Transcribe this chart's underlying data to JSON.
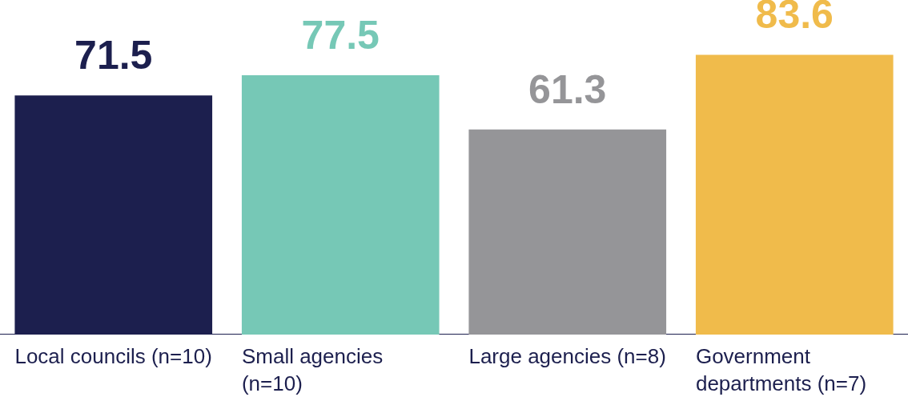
{
  "chart_data": {
    "type": "bar",
    "categories": [
      "Local councils (n=10)",
      "Small agencies (n=10)",
      "Large agencies (n=8)",
      "Government departments (n=7)"
    ],
    "values": [
      71.5,
      77.5,
      61.3,
      83.6
    ],
    "colors": [
      "#1c1f4e",
      "#76c8b6",
      "#959598",
      "#f0bb4b"
    ],
    "data_labels": true,
    "grid": false,
    "legend": false
  }
}
